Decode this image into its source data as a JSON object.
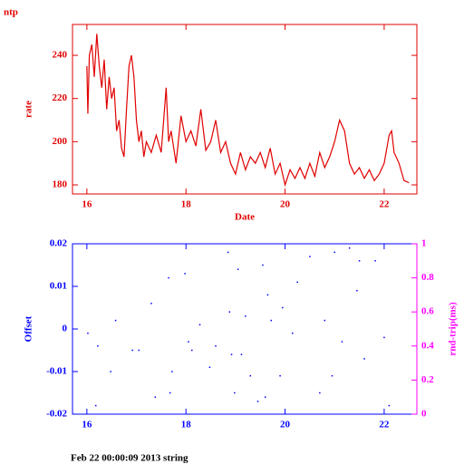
{
  "chart_data": [
    {
      "type": "line",
      "title": "ntp",
      "xlabel": "Date",
      "ylabel": "rate",
      "axis_color": "#e00000",
      "xlim": [
        15.71,
        22.66
      ],
      "xticks": [
        16,
        18,
        20,
        22
      ],
      "ylim": [
        175.8,
        254.3
      ],
      "yticks": [
        180,
        200,
        220,
        240
      ],
      "x": [
        16.0,
        16.02,
        16.05,
        16.1,
        16.15,
        16.2,
        16.25,
        16.3,
        16.35,
        16.4,
        16.45,
        16.5,
        16.55,
        16.6,
        16.65,
        16.7,
        16.75,
        16.8,
        16.85,
        16.9,
        16.95,
        17.0,
        17.05,
        17.1,
        17.15,
        17.2,
        17.3,
        17.4,
        17.5,
        17.6,
        17.65,
        17.7,
        17.8,
        17.9,
        18.0,
        18.1,
        18.2,
        18.3,
        18.4,
        18.5,
        18.6,
        18.7,
        18.8,
        18.9,
        19.0,
        19.1,
        19.2,
        19.3,
        19.4,
        19.5,
        19.6,
        19.7,
        19.8,
        19.9,
        20.0,
        20.1,
        20.2,
        20.3,
        20.4,
        20.5,
        20.6,
        20.7,
        20.8,
        20.9,
        21.0,
        21.1,
        21.2,
        21.3,
        21.4,
        21.5,
        21.6,
        21.7,
        21.8,
        21.9,
        22.0,
        22.1,
        22.15,
        22.2,
        22.3,
        22.4,
        22.5
      ],
      "series": [
        {
          "color": "#e00000",
          "values": [
            235,
            213,
            240,
            245,
            230,
            250,
            235,
            225,
            238,
            215,
            230,
            220,
            225,
            205,
            210,
            197,
            193,
            215,
            235,
            240,
            230,
            210,
            200,
            205,
            193,
            200,
            195,
            203,
            195,
            225,
            200,
            205,
            190,
            212,
            200,
            205,
            198,
            215,
            196,
            200,
            210,
            195,
            200,
            190,
            185,
            195,
            187,
            193,
            190,
            195,
            188,
            197,
            185,
            190,
            180,
            187,
            183,
            188,
            183,
            190,
            184,
            195,
            188,
            193,
            200,
            210,
            205,
            190,
            185,
            188,
            183,
            187,
            182,
            185,
            190,
            203,
            205,
            195,
            190,
            182,
            181
          ]
        }
      ]
    },
    {
      "type": "scatter",
      "ylabel": "Offset",
      "y2label": "rnd-trip(ms)",
      "axis_color": "#0000ff",
      "y2_color": "#ff00ff",
      "xlim": [
        15.71,
        22.66
      ],
      "xticks": [
        16,
        18,
        20,
        22
      ],
      "ylim": [
        -0.02,
        0.02
      ],
      "yticks": [
        -0.02,
        -0.01,
        0,
        0.01,
        0.02
      ],
      "y2lim": [
        0,
        1
      ],
      "y2ticks": [
        0,
        0.2,
        0.4,
        0.6,
        0.8,
        1
      ],
      "x": [
        16.02,
        16.18,
        16.22,
        16.48,
        16.58,
        16.92,
        17.05,
        17.3,
        17.38,
        17.65,
        17.68,
        17.72,
        17.98,
        18.05,
        18.12,
        18.28,
        18.48,
        18.6,
        18.85,
        18.88,
        18.92,
        18.98,
        19.05,
        19.12,
        19.2,
        19.3,
        19.45,
        19.55,
        19.6,
        19.65,
        19.72,
        19.9,
        19.95,
        20.15,
        20.25,
        20.5,
        20.7,
        20.8,
        20.95,
        21.0,
        21.15,
        21.3,
        21.45,
        21.5,
        21.6,
        21.82,
        22.0,
        22.1
      ],
      "series": [
        {
          "color": "#0000ff",
          "values": [
            -0.001,
            -0.018,
            -0.004,
            -0.01,
            0.002,
            -0.005,
            -0.005,
            0.006,
            -0.016,
            0.012,
            -0.015,
            -0.01,
            0.013,
            -0.003,
            -0.005,
            0.001,
            -0.009,
            -0.004,
            0.018,
            0.004,
            -0.006,
            -0.015,
            0.014,
            -0.006,
            0.003,
            -0.011,
            -0.017,
            0.015,
            -0.016,
            0.008,
            0.002,
            -0.011,
            0.005,
            -0.001,
            0.011,
            0.017,
            -0.015,
            0.002,
            -0.011,
            0.018,
            -0.003,
            0.019,
            0.009,
            0.016,
            -0.007,
            0.016,
            -0.002,
            -0.018
          ]
        }
      ]
    }
  ],
  "footer": "Feb 22 00:00:09 2013 string"
}
